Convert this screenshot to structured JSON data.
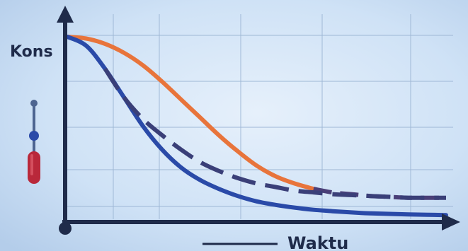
{
  "chart_data": {
    "type": "line",
    "xlabel": "Waktu",
    "ylabel": "Kons",
    "title": "",
    "grid": true,
    "legend": "none",
    "xlim": [
      0,
      10
    ],
    "ylim": [
      0,
      1
    ],
    "series": [
      {
        "color": "#e8743b",
        "style": "solid-then-dashed",
        "x": [
          0,
          0.5,
          1,
          1.5,
          2,
          2.5,
          3,
          3.5,
          4,
          4.5,
          5,
          5.5,
          6,
          6.5,
          7,
          7.5,
          8,
          8.5,
          9,
          9.5,
          10
        ],
        "y": [
          1.0,
          0.99,
          0.96,
          0.91,
          0.84,
          0.75,
          0.65,
          0.55,
          0.45,
          0.36,
          0.28,
          0.22,
          0.18,
          0.15,
          0.13,
          0.12,
          0.11,
          0.105,
          0.1,
          0.1,
          0.1
        ]
      },
      {
        "color": "#2a4aa8",
        "style": "solid",
        "x": [
          0,
          0.5,
          1,
          1.5,
          2,
          2.5,
          3,
          3.5,
          4,
          4.5,
          5,
          5.5,
          6,
          6.5,
          7,
          7.5,
          8,
          8.5,
          9,
          9.5,
          10
        ],
        "y": [
          1.0,
          0.95,
          0.82,
          0.66,
          0.5,
          0.37,
          0.27,
          0.2,
          0.15,
          0.11,
          0.08,
          0.06,
          0.045,
          0.033,
          0.025,
          0.018,
          0.013,
          0.01,
          0.007,
          0.005,
          0.003
        ]
      },
      {
        "color": "#3a3f78",
        "style": "dashed",
        "x": [
          0,
          0.5,
          1,
          1.5,
          2,
          2.5,
          3,
          3.5,
          4,
          4.5,
          5,
          5.5,
          6,
          6.5,
          7,
          7.5,
          8,
          8.5,
          9,
          9.5,
          10
        ],
        "y": [
          1.0,
          0.95,
          0.82,
          0.66,
          0.54,
          0.45,
          0.37,
          0.3,
          0.25,
          0.21,
          0.18,
          0.16,
          0.14,
          0.13,
          0.12,
          0.115,
          0.11,
          0.105,
          0.1,
          0.1,
          0.1
        ]
      }
    ]
  },
  "thermometer_icon": "thermometer-icon",
  "colors": {
    "background": "#cfe2f6",
    "axis": "#1f2b4a",
    "grid": "#9fb8d6"
  }
}
